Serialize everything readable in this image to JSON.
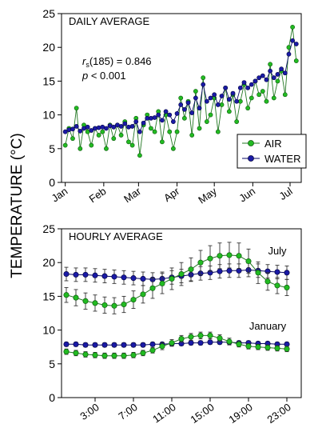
{
  "ylabel": "TEMPERATURE (°C)",
  "colors": {
    "air": "#22bb22",
    "water": "#1a1aa6",
    "air_line": "#227722",
    "water_line": "#0a0a66"
  },
  "chart_data": [
    {
      "type": "line",
      "title": "DAILY AVERAGE",
      "annotation_stat": "r",
      "annotation_sub": "s",
      "annotation_value": "(185) = 0.846",
      "annotation_p_letter": "p",
      "annotation_p_value": " < 0.001",
      "x_ticks": [
        "Jan",
        "Feb",
        "Mar",
        "Apr",
        "May",
        "Jun",
        "Jul"
      ],
      "x_tick_days": [
        0,
        31,
        59,
        90,
        120,
        151,
        181
      ],
      "xlim": [
        -3,
        190
      ],
      "ylim": [
        0,
        25
      ],
      "y_ticks": [
        0,
        5,
        10,
        15,
        20,
        25
      ],
      "legend_position": "right",
      "grid": false,
      "series": [
        {
          "name": "AIR",
          "marker": "circle",
          "color": "air",
          "x": [
            0,
            3,
            6,
            9,
            12,
            15,
            18,
            21,
            24,
            27,
            30,
            33,
            36,
            39,
            42,
            45,
            48,
            51,
            54,
            57,
            60,
            63,
            66,
            69,
            72,
            75,
            78,
            81,
            84,
            87,
            90,
            93,
            96,
            99,
            102,
            105,
            108,
            111,
            114,
            117,
            120,
            123,
            126,
            129,
            132,
            135,
            138,
            141,
            144,
            147,
            150,
            153,
            156,
            159,
            162,
            165,
            168,
            171,
            174,
            177,
            180,
            183,
            186
          ],
          "values": [
            5.5,
            8.0,
            6.5,
            11.0,
            5.0,
            8.5,
            7.5,
            5.5,
            8.0,
            7.0,
            7.5,
            5.0,
            8.5,
            6.5,
            8.5,
            7.0,
            9.0,
            6.0,
            5.5,
            9.5,
            4.0,
            8.5,
            10.0,
            8.0,
            7.5,
            10.5,
            6.0,
            10.0,
            7.5,
            5.0,
            7.5,
            12.5,
            9.5,
            12.0,
            7.0,
            13.5,
            8.0,
            15.5,
            9.0,
            10.0,
            12.5,
            7.5,
            11.5,
            14.0,
            10.5,
            13.0,
            9.0,
            12.0,
            14.5,
            11.0,
            12.5,
            15.0,
            13.0,
            13.5,
            12.0,
            17.5,
            12.5,
            15.0,
            16.5,
            13.0,
            20.0,
            23.0,
            18.0
          ]
        },
        {
          "name": "WATER",
          "marker": "circle",
          "color": "water",
          "x": [
            0,
            3,
            6,
            9,
            12,
            15,
            18,
            21,
            24,
            27,
            30,
            33,
            36,
            39,
            42,
            45,
            48,
            51,
            54,
            57,
            60,
            63,
            66,
            69,
            72,
            75,
            78,
            81,
            84,
            87,
            90,
            93,
            96,
            99,
            102,
            105,
            108,
            111,
            114,
            117,
            120,
            123,
            126,
            129,
            132,
            135,
            138,
            141,
            144,
            147,
            150,
            153,
            156,
            159,
            162,
            165,
            168,
            171,
            174,
            177,
            180,
            183,
            186
          ],
          "values": [
            7.5,
            7.8,
            7.9,
            8.3,
            7.6,
            8.0,
            8.2,
            7.7,
            8.0,
            8.1,
            8.2,
            8.0,
            8.4,
            8.2,
            8.5,
            8.3,
            8.7,
            8.2,
            8.3,
            9.0,
            7.5,
            8.8,
            9.5,
            9.5,
            9.6,
            10.0,
            9.2,
            10.5,
            10.0,
            9.0,
            10.2,
            11.5,
            10.8,
            11.8,
            10.3,
            12.5,
            11.0,
            14.5,
            12.0,
            12.5,
            13.0,
            11.5,
            12.8,
            14.0,
            12.3,
            13.2,
            12.0,
            14.0,
            14.8,
            14.0,
            14.5,
            15.0,
            15.5,
            15.8,
            15.2,
            16.5,
            15.5,
            16.0,
            16.8,
            16.2,
            19.0,
            21.0,
            20.5
          ]
        }
      ]
    },
    {
      "type": "line",
      "title": "HOURLY AVERAGE",
      "x_tick_labels": [
        "3:00",
        "7:00",
        "11:00",
        "15:00",
        "19:00",
        "23:00"
      ],
      "x_tick_hours": [
        3,
        7,
        11,
        15,
        19,
        23
      ],
      "xlim": [
        -0.5,
        24.5
      ],
      "ylim": [
        0,
        25
      ],
      "y_ticks": [
        0,
        5,
        10,
        15,
        20,
        25
      ],
      "grid": false,
      "error_bars": true,
      "hours": [
        0,
        1,
        2,
        3,
        4,
        5,
        6,
        7,
        8,
        9,
        10,
        11,
        12,
        13,
        14,
        15,
        16,
        17,
        18,
        19,
        20,
        21,
        22,
        23
      ],
      "month_labels": [
        {
          "text": "July",
          "hour": 22,
          "value": 21.2
        },
        {
          "text": "January",
          "hour": 21,
          "value": 10.1
        }
      ],
      "series": [
        {
          "month": "July",
          "kind": "water",
          "values": [
            18.3,
            18.2,
            18.2,
            18.1,
            18.0,
            17.9,
            17.8,
            17.7,
            17.6,
            17.5,
            17.6,
            17.8,
            18.0,
            18.2,
            18.4,
            18.5,
            18.7,
            18.8,
            18.8,
            18.9,
            18.8,
            18.7,
            18.6,
            18.5
          ],
          "errors": [
            1.0,
            1.0,
            1.0,
            1.0,
            1.0,
            1.0,
            1.0,
            1.0,
            1.0,
            1.0,
            1.0,
            1.0,
            1.0,
            1.0,
            1.0,
            1.0,
            1.0,
            1.0,
            1.0,
            1.0,
            1.0,
            1.0,
            1.0,
            1.0
          ]
        },
        {
          "month": "July",
          "kind": "air",
          "values": [
            15.2,
            14.8,
            14.3,
            14.0,
            13.7,
            13.6,
            13.8,
            14.5,
            15.3,
            16.2,
            16.9,
            17.6,
            18.3,
            19.0,
            20.0,
            20.6,
            21.0,
            21.1,
            21.0,
            20.2,
            18.5,
            17.2,
            16.6,
            16.3
          ],
          "errors": [
            1.1,
            1.2,
            1.2,
            1.2,
            1.2,
            1.2,
            1.2,
            1.3,
            1.3,
            1.5,
            1.5,
            1.6,
            1.7,
            1.7,
            1.8,
            1.9,
            1.9,
            1.9,
            1.9,
            1.8,
            1.6,
            1.3,
            1.2,
            1.2
          ]
        },
        {
          "month": "January",
          "kind": "water",
          "values": [
            7.9,
            7.9,
            7.8,
            7.8,
            7.8,
            7.8,
            7.8,
            7.8,
            7.8,
            7.9,
            7.9,
            8.0,
            8.0,
            8.1,
            8.1,
            8.2,
            8.2,
            8.2,
            8.1,
            8.1,
            8.0,
            8.0,
            7.9,
            7.9
          ],
          "errors": [
            0.3,
            0.3,
            0.3,
            0.3,
            0.3,
            0.3,
            0.3,
            0.3,
            0.3,
            0.3,
            0.3,
            0.3,
            0.3,
            0.3,
            0.3,
            0.3,
            0.3,
            0.3,
            0.3,
            0.3,
            0.3,
            0.3,
            0.3,
            0.3
          ]
        },
        {
          "month": "January",
          "kind": "air",
          "values": [
            6.8,
            6.6,
            6.4,
            6.3,
            6.2,
            6.2,
            6.2,
            6.3,
            6.6,
            7.0,
            7.6,
            8.1,
            8.7,
            9.0,
            9.2,
            9.2,
            8.8,
            8.3,
            7.9,
            7.6,
            7.5,
            7.4,
            7.3,
            7.2
          ],
          "errors": [
            0.4,
            0.4,
            0.4,
            0.4,
            0.4,
            0.4,
            0.4,
            0.4,
            0.4,
            0.4,
            0.5,
            0.5,
            0.5,
            0.5,
            0.5,
            0.5,
            0.5,
            0.5,
            0.4,
            0.4,
            0.4,
            0.4,
            0.4,
            0.4
          ]
        }
      ]
    }
  ]
}
